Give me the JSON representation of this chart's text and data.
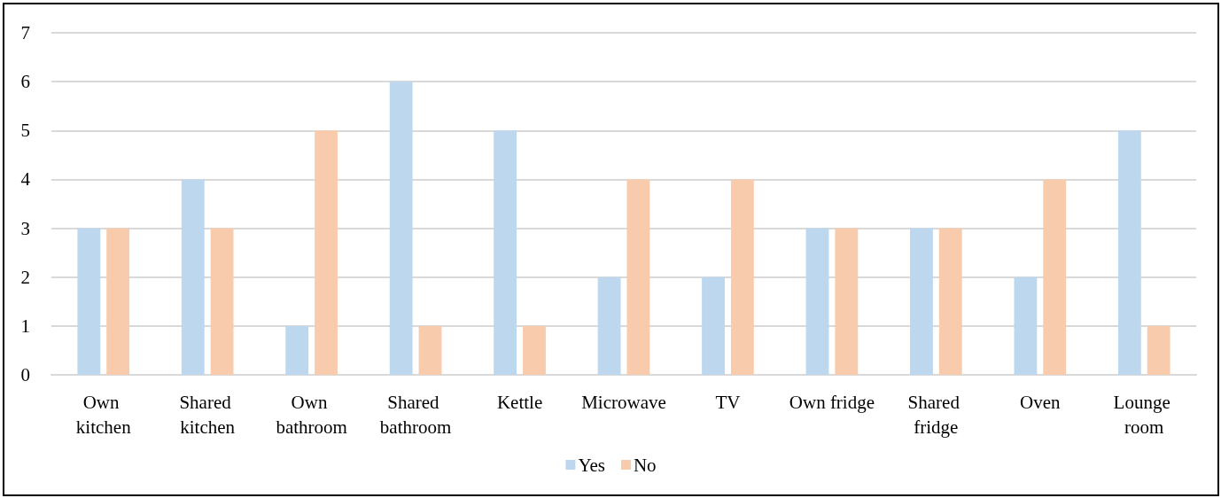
{
  "chart_data": {
    "type": "bar",
    "categories": [
      "Own kitchen",
      "Shared kitchen",
      "Own bathroom",
      "Shared bathroom",
      "Kettle",
      "Microwave",
      "TV",
      "Own fridge",
      "Shared fridge",
      "Oven",
      "Lounge room"
    ],
    "series": [
      {
        "name": "Yes",
        "color": "#bdd7ee",
        "values": [
          3,
          4,
          1,
          6,
          5,
          2,
          2,
          3,
          3,
          2,
          5
        ]
      },
      {
        "name": "No",
        "color": "#f8cbad",
        "values": [
          3,
          3,
          5,
          1,
          1,
          4,
          4,
          3,
          3,
          4,
          1
        ]
      }
    ],
    "ylim": [
      0,
      7
    ],
    "yticks": [
      0,
      1,
      2,
      3,
      4,
      5,
      6,
      7
    ],
    "grid": "y",
    "legend": "bottom"
  }
}
